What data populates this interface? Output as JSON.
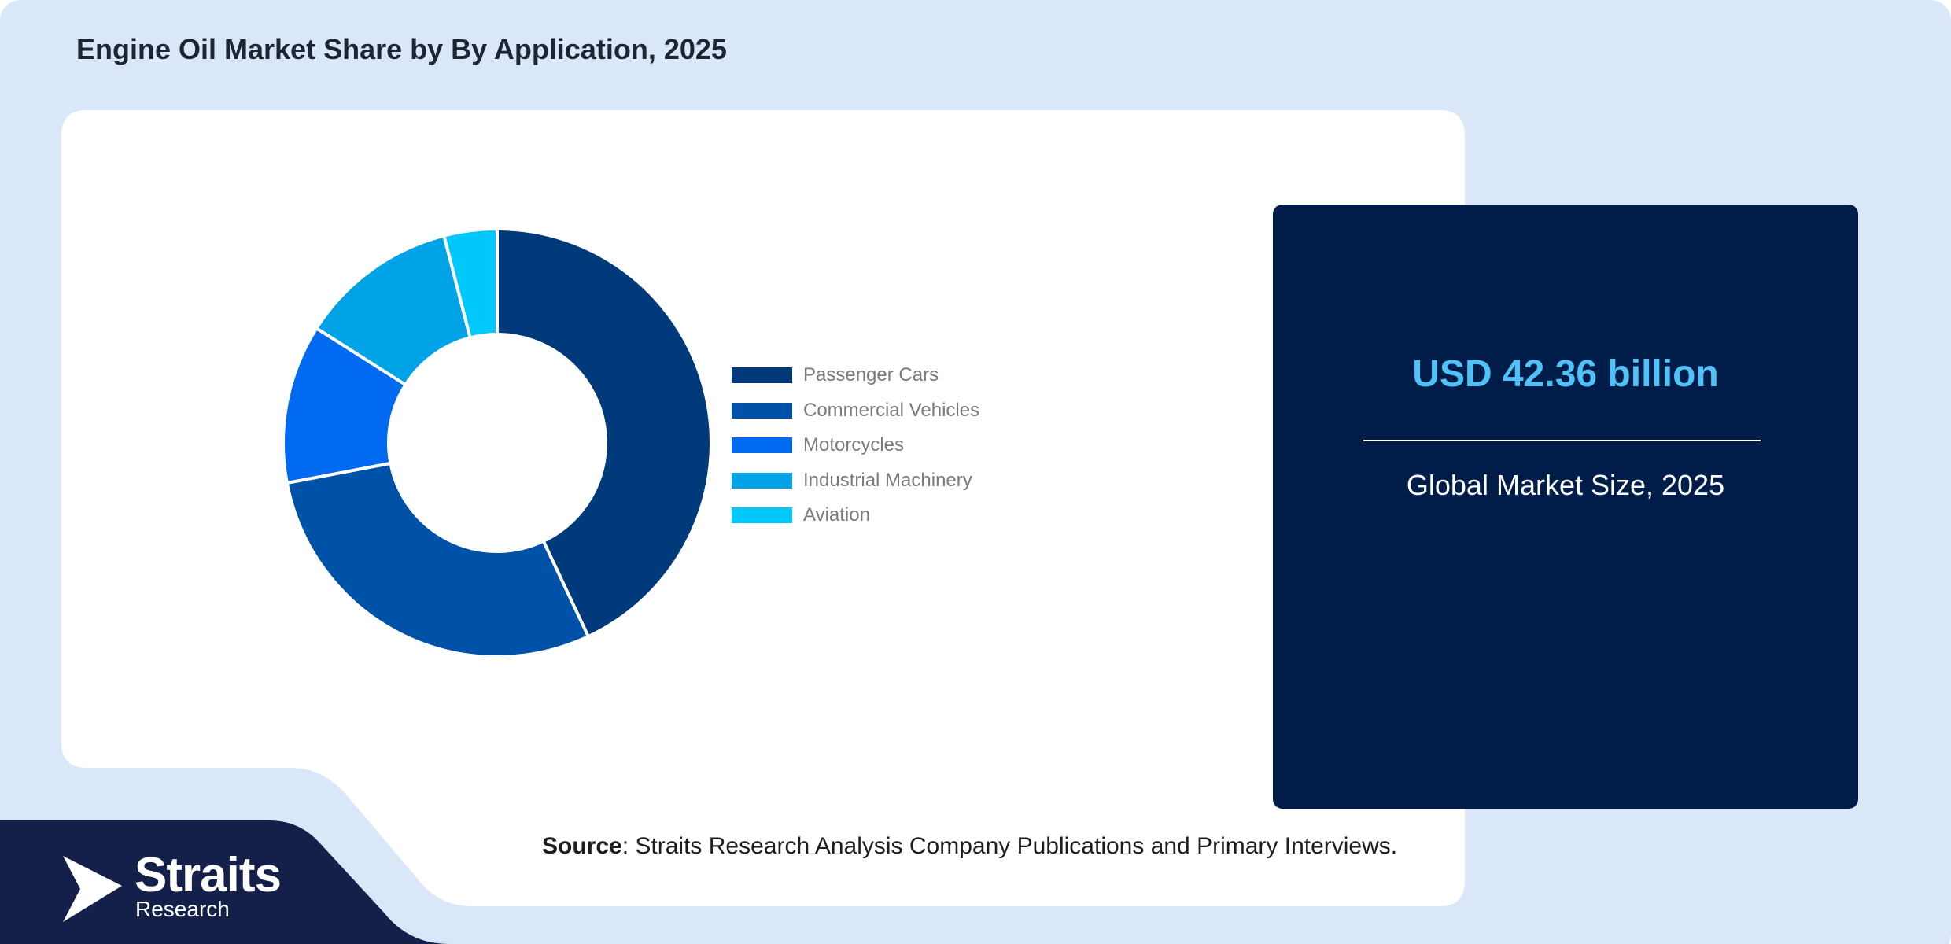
{
  "title": "Engine Oil Market Share by By Application, 2025",
  "colors": {
    "page_bg": "#d9e7f9",
    "panel_bg": "#ffffff",
    "stat_bg": "#001d4a",
    "stat_value": "#4fc3f7",
    "logo_bg": "#14204a"
  },
  "chart_data": {
    "type": "pie",
    "donut": true,
    "categories": [
      "Passenger Cars",
      "Commercial Vehicles",
      "Motorcycles",
      "Industrial Machinery",
      "Aviation"
    ],
    "values": [
      43,
      29,
      12,
      12,
      4
    ],
    "colors": [
      "#003a7a",
      "#0051a8",
      "#006af0",
      "#00a3e6",
      "#00c8fa"
    ],
    "legend_position": "right"
  },
  "stat": {
    "value": "USD 42.36 billion",
    "label": "Global Market Size, 2025"
  },
  "source": {
    "bold": "Source",
    "text": ": Straits Research Analysis Company Publications and Primary Interviews."
  },
  "logo": {
    "name": "Straits",
    "sub": "Research",
    "icon": "play-arrow-icon"
  }
}
